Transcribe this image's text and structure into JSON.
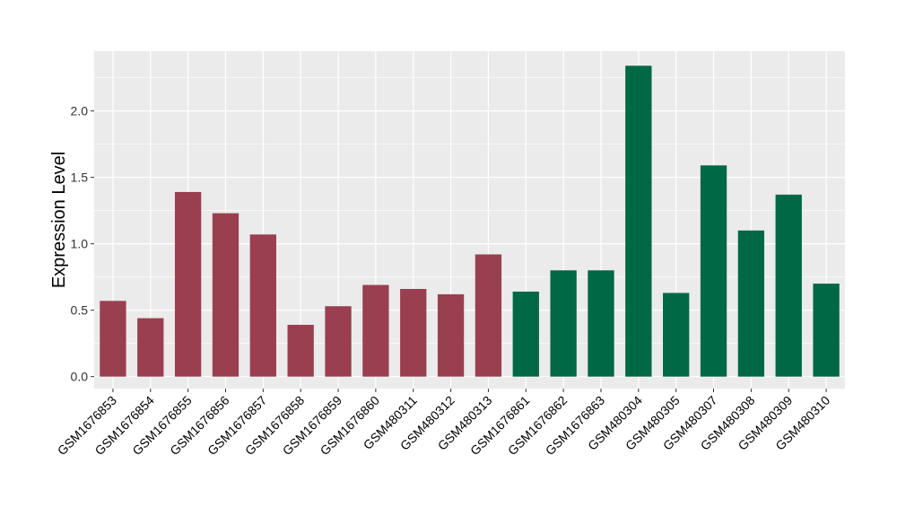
{
  "chart_data": {
    "type": "bar",
    "title": "",
    "xlabel": "",
    "ylabel": "Expression Level",
    "ylim": [
      -0.09,
      2.45
    ],
    "yticks": [
      "0.0",
      "0.5",
      "1.0",
      "1.5",
      "2.0"
    ],
    "grid": true,
    "legend": "none",
    "categories": [
      "GSM1676853",
      "GSM1676854",
      "GSM1676855",
      "GSM1676856",
      "GSM1676857",
      "GSM1676858",
      "GSM1676859",
      "GSM1676860",
      "GSM480311",
      "GSM480312",
      "GSM480313",
      "GSM1676861",
      "GSM1676862",
      "GSM1676863",
      "GSM480304",
      "GSM480305",
      "GSM480307",
      "GSM480308",
      "GSM480309",
      "GSM480310"
    ],
    "values": [
      0.57,
      0.44,
      1.39,
      1.23,
      1.07,
      0.39,
      0.53,
      0.69,
      0.66,
      0.62,
      0.92,
      0.64,
      0.8,
      0.8,
      2.34,
      0.63,
      1.59,
      1.1,
      1.37,
      0.7
    ],
    "groups": [
      0,
      0,
      0,
      0,
      0,
      0,
      0,
      0,
      0,
      0,
      0,
      1,
      1,
      1,
      1,
      1,
      1,
      1,
      1,
      1
    ],
    "group_colors": [
      "#9A3F4F",
      "#006845"
    ],
    "panel_background": "#EBEBEB"
  }
}
